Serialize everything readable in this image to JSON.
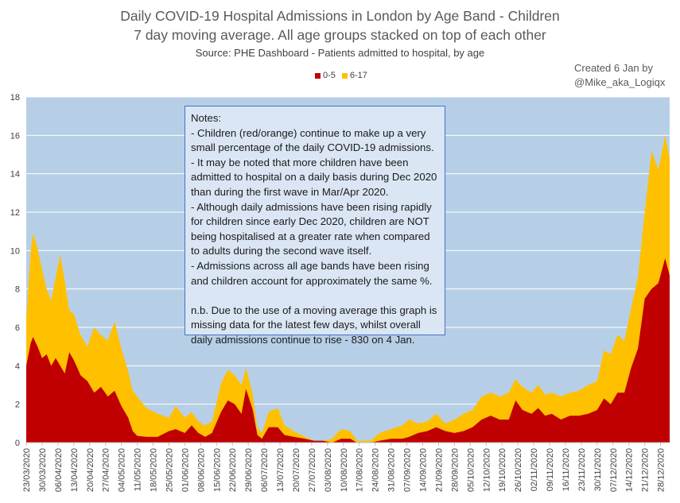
{
  "titles": {
    "line1": "Daily COVID-19 Hospital Admissions in London by Age Band - Children",
    "line2": "7 day moving average. All age groups stacked on top of each other",
    "line3": "Source: PHE Dashboard - Patients admitted to hospital, by age"
  },
  "credit": {
    "line1": "Created 6 Jan by",
    "line2": "@Mike_aka_Logiqx"
  },
  "colors": {
    "plot_bg": "#b7cfe6",
    "series_0_5": "#c00000",
    "series_6_17": "#ffc000",
    "grid": "#ffffff"
  },
  "notes": {
    "lines": [
      "Notes:",
      "- Children (red/orange) continue to make up a very",
      "small percentage of the daily COVID-19 admissions.",
      "- It may be noted that more children have been",
      "admitted to hospital on a daily basis during Dec 2020",
      "than during the first wave in Mar/Apr 2020.",
      "- Although daily admissions have been rising rapidly",
      "for children since early Dec 2020, children are NOT",
      "being hospitalised at a greater rate when compared",
      "to adults during the second wave itself.",
      "- Admissions across all age bands have been rising",
      "and children account for approximately the same %.",
      "",
      "n.b. Due to the use of a moving average this graph is",
      "missing data for the latest few days, whilst overall",
      "daily admissions continue to rise - 830 on 4 Jan."
    ]
  },
  "chart_data": {
    "type": "area",
    "stacked": true,
    "ylim": [
      0,
      18
    ],
    "yticks": [
      0,
      2,
      4,
      6,
      8,
      10,
      12,
      14,
      16,
      18
    ],
    "grid": true,
    "legend_position": "top",
    "x_start": "2020-03-23",
    "x_end": "2021-01-01",
    "xtick_labels": [
      "23/03/2020",
      "30/03/2020",
      "06/04/2020",
      "13/04/2020",
      "20/04/2020",
      "27/04/2020",
      "04/05/2020",
      "11/05/2020",
      "18/05/2020",
      "25/05/2020",
      "01/06/2020",
      "08/06/2020",
      "15/06/2020",
      "22/06/2020",
      "29/06/2020",
      "06/07/2020",
      "13/07/2020",
      "20/07/2020",
      "27/07/2020",
      "03/08/2020",
      "10/08/2020",
      "17/08/2020",
      "24/08/2020",
      "31/08/2020",
      "07/09/2020",
      "14/09/2020",
      "21/09/2020",
      "28/09/2020",
      "05/10/2020",
      "12/10/2020",
      "19/10/2020",
      "26/10/2020",
      "02/11/2020",
      "09/11/2020",
      "16/11/2020",
      "23/11/2020",
      "30/11/2020",
      "07/12/2020",
      "14/12/2020",
      "21/12/2020",
      "28/12/2020"
    ],
    "series": [
      {
        "name": "0-5",
        "points": [
          [
            "2020-03-23",
            4.0
          ],
          [
            "2020-03-25",
            5.2
          ],
          [
            "2020-03-26",
            5.5
          ],
          [
            "2020-03-28",
            5.0
          ],
          [
            "2020-03-30",
            4.4
          ],
          [
            "2020-04-01",
            4.6
          ],
          [
            "2020-04-03",
            4.0
          ],
          [
            "2020-04-05",
            4.4
          ],
          [
            "2020-04-07",
            4.0
          ],
          [
            "2020-04-09",
            3.6
          ],
          [
            "2020-04-11",
            4.7
          ],
          [
            "2020-04-13",
            4.3
          ],
          [
            "2020-04-16",
            3.5
          ],
          [
            "2020-04-19",
            3.2
          ],
          [
            "2020-04-22",
            2.6
          ],
          [
            "2020-04-25",
            2.9
          ],
          [
            "2020-04-28",
            2.4
          ],
          [
            "2020-05-01",
            2.7
          ],
          [
            "2020-05-04",
            1.9
          ],
          [
            "2020-05-07",
            1.3
          ],
          [
            "2020-05-09",
            0.6
          ],
          [
            "2020-05-11",
            0.35
          ],
          [
            "2020-05-15",
            0.3
          ],
          [
            "2020-05-20",
            0.3
          ],
          [
            "2020-05-25",
            0.6
          ],
          [
            "2020-05-28",
            0.7
          ],
          [
            "2020-06-01",
            0.5
          ],
          [
            "2020-06-04",
            0.9
          ],
          [
            "2020-06-07",
            0.5
          ],
          [
            "2020-06-10",
            0.3
          ],
          [
            "2020-06-13",
            0.5
          ],
          [
            "2020-06-17",
            1.6
          ],
          [
            "2020-06-20",
            2.2
          ],
          [
            "2020-06-23",
            2.0
          ],
          [
            "2020-06-26",
            1.5
          ],
          [
            "2020-06-28",
            2.8
          ],
          [
            "2020-07-01",
            1.7
          ],
          [
            "2020-07-03",
            0.4
          ],
          [
            "2020-07-05",
            0.2
          ],
          [
            "2020-07-08",
            0.8
          ],
          [
            "2020-07-12",
            0.8
          ],
          [
            "2020-07-15",
            0.4
          ],
          [
            "2020-07-19",
            0.3
          ],
          [
            "2020-07-24",
            0.2
          ],
          [
            "2020-07-28",
            0.1
          ],
          [
            "2020-08-01",
            0.1
          ],
          [
            "2020-08-05",
            0.0
          ],
          [
            "2020-08-09",
            0.2
          ],
          [
            "2020-08-13",
            0.2
          ],
          [
            "2020-08-16",
            0.0
          ],
          [
            "2020-08-22",
            0.0
          ],
          [
            "2020-08-26",
            0.1
          ],
          [
            "2020-08-31",
            0.2
          ],
          [
            "2020-09-05",
            0.2
          ],
          [
            "2020-09-08",
            0.3
          ],
          [
            "2020-09-12",
            0.5
          ],
          [
            "2020-09-16",
            0.6
          ],
          [
            "2020-09-20",
            0.8
          ],
          [
            "2020-09-24",
            0.6
          ],
          [
            "2020-09-28",
            0.5
          ],
          [
            "2020-10-02",
            0.6
          ],
          [
            "2020-10-06",
            0.8
          ],
          [
            "2020-10-10",
            1.2
          ],
          [
            "2020-10-14",
            1.4
          ],
          [
            "2020-10-18",
            1.2
          ],
          [
            "2020-10-22",
            1.2
          ],
          [
            "2020-10-25",
            2.2
          ],
          [
            "2020-10-28",
            1.7
          ],
          [
            "2020-11-01",
            1.5
          ],
          [
            "2020-11-04",
            1.8
          ],
          [
            "2020-11-07",
            1.4
          ],
          [
            "2020-11-10",
            1.5
          ],
          [
            "2020-11-14",
            1.2
          ],
          [
            "2020-11-18",
            1.4
          ],
          [
            "2020-11-22",
            1.4
          ],
          [
            "2020-11-26",
            1.5
          ],
          [
            "2020-11-30",
            1.7
          ],
          [
            "2020-12-03",
            2.3
          ],
          [
            "2020-12-06",
            2.0
          ],
          [
            "2020-12-09",
            2.6
          ],
          [
            "2020-12-12",
            2.6
          ],
          [
            "2020-12-15",
            3.9
          ],
          [
            "2020-12-18",
            4.9
          ],
          [
            "2020-12-21",
            7.5
          ],
          [
            "2020-12-24",
            8.0
          ],
          [
            "2020-12-27",
            8.3
          ],
          [
            "2020-12-30",
            9.6
          ],
          [
            "2021-01-01",
            8.7
          ]
        ]
      },
      {
        "name": "6-17",
        "points": [
          [
            "2020-03-23",
            6.4
          ],
          [
            "2020-03-25",
            10.0
          ],
          [
            "2020-03-26",
            10.9
          ],
          [
            "2020-03-28",
            10.1
          ],
          [
            "2020-03-30",
            9.0
          ],
          [
            "2020-04-01",
            8.0
          ],
          [
            "2020-04-03",
            7.4
          ],
          [
            "2020-04-05",
            8.6
          ],
          [
            "2020-04-07",
            9.8
          ],
          [
            "2020-04-09",
            8.4
          ],
          [
            "2020-04-11",
            6.9
          ],
          [
            "2020-04-13",
            6.7
          ],
          [
            "2020-04-16",
            5.6
          ],
          [
            "2020-04-19",
            5.0
          ],
          [
            "2020-04-22",
            6.0
          ],
          [
            "2020-04-25",
            5.6
          ],
          [
            "2020-04-28",
            5.3
          ],
          [
            "2020-05-01",
            6.3
          ],
          [
            "2020-05-04",
            4.9
          ],
          [
            "2020-05-07",
            3.7
          ],
          [
            "2020-05-09",
            2.7
          ],
          [
            "2020-05-11",
            2.4
          ],
          [
            "2020-05-15",
            1.8
          ],
          [
            "2020-05-20",
            1.5
          ],
          [
            "2020-05-25",
            1.3
          ],
          [
            "2020-05-28",
            1.9
          ],
          [
            "2020-06-01",
            1.3
          ],
          [
            "2020-06-04",
            1.6
          ],
          [
            "2020-06-07",
            1.1
          ],
          [
            "2020-06-10",
            0.9
          ],
          [
            "2020-06-13",
            1.1
          ],
          [
            "2020-06-17",
            3.1
          ],
          [
            "2020-06-20",
            3.8
          ],
          [
            "2020-06-23",
            3.5
          ],
          [
            "2020-06-26",
            3.0
          ],
          [
            "2020-06-28",
            3.9
          ],
          [
            "2020-07-01",
            2.5
          ],
          [
            "2020-07-03",
            0.8
          ],
          [
            "2020-07-05",
            0.5
          ],
          [
            "2020-07-08",
            1.6
          ],
          [
            "2020-07-12",
            1.8
          ],
          [
            "2020-07-15",
            0.9
          ],
          [
            "2020-07-19",
            0.6
          ],
          [
            "2020-07-24",
            0.3
          ],
          [
            "2020-07-28",
            0.1
          ],
          [
            "2020-08-01",
            0.1
          ],
          [
            "2020-08-05",
            0.2
          ],
          [
            "2020-08-09",
            0.7
          ],
          [
            "2020-08-13",
            0.6
          ],
          [
            "2020-08-16",
            0.1
          ],
          [
            "2020-08-22",
            0.1
          ],
          [
            "2020-08-26",
            0.5
          ],
          [
            "2020-08-31",
            0.7
          ],
          [
            "2020-09-05",
            0.9
          ],
          [
            "2020-09-08",
            1.2
          ],
          [
            "2020-09-12",
            1.0
          ],
          [
            "2020-09-16",
            1.1
          ],
          [
            "2020-09-20",
            1.5
          ],
          [
            "2020-09-24",
            1.0
          ],
          [
            "2020-09-28",
            1.2
          ],
          [
            "2020-10-02",
            1.5
          ],
          [
            "2020-10-06",
            1.7
          ],
          [
            "2020-10-10",
            2.4
          ],
          [
            "2020-10-14",
            2.6
          ],
          [
            "2020-10-18",
            2.4
          ],
          [
            "2020-10-22",
            2.6
          ],
          [
            "2020-10-25",
            3.3
          ],
          [
            "2020-10-28",
            2.9
          ],
          [
            "2020-11-01",
            2.6
          ],
          [
            "2020-11-04",
            3.0
          ],
          [
            "2020-11-07",
            2.5
          ],
          [
            "2020-11-10",
            2.6
          ],
          [
            "2020-11-14",
            2.4
          ],
          [
            "2020-11-18",
            2.6
          ],
          [
            "2020-11-22",
            2.7
          ],
          [
            "2020-11-26",
            3.0
          ],
          [
            "2020-11-30",
            3.2
          ],
          [
            "2020-12-03",
            4.8
          ],
          [
            "2020-12-06",
            4.6
          ],
          [
            "2020-12-09",
            5.6
          ],
          [
            "2020-12-12",
            5.3
          ],
          [
            "2020-12-15",
            7.0
          ],
          [
            "2020-12-18",
            8.6
          ],
          [
            "2020-12-21",
            12.0
          ],
          [
            "2020-12-24",
            15.2
          ],
          [
            "2020-12-27",
            14.2
          ],
          [
            "2020-12-30",
            16.0
          ],
          [
            "2021-01-01",
            14.8
          ]
        ]
      }
    ]
  }
}
